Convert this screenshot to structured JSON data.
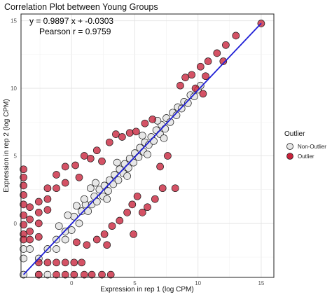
{
  "chart_data": {
    "type": "scatter",
    "title": "Correlation Plot between Young Groups",
    "xlabel": "Expression in rep 1 (log CPM)",
    "ylabel": "Expression in rep 2 (log CPM)",
    "xlim": [
      -4,
      16
    ],
    "ylim": [
      -4,
      15.5
    ],
    "xticks": [
      0,
      5,
      10,
      15
    ],
    "yticks": [
      0,
      5,
      10,
      15
    ],
    "grid": true,
    "annotation": {
      "equation": "y = 0.9897 x + -0.0303",
      "pearson": "Pearson r = 0.9759"
    },
    "fit_line": {
      "slope": 0.9897,
      "intercept": -0.0303,
      "x_range": [
        -3.8,
        15
      ],
      "color": "#1f1fd6"
    },
    "legend": {
      "title": "Outlier",
      "position": "right",
      "entries": [
        {
          "label": "Non-Outlier",
          "color": "#e6e6e6"
        },
        {
          "label": "Outlier",
          "color": "#c8213a"
        }
      ]
    },
    "series": [
      {
        "name": "Non-Outlier",
        "color": "#e6e6e6",
        "points": [
          [
            -3.8,
            -3.8
          ],
          [
            -3.8,
            -2.6
          ],
          [
            -3.8,
            -1.9
          ],
          [
            -2.6,
            -3.8
          ],
          [
            -1.9,
            -3.8
          ],
          [
            -3.3,
            -1.9
          ],
          [
            -2.6,
            -2.6
          ],
          [
            -1.9,
            -1.9
          ],
          [
            -1.2,
            -1.9
          ],
          [
            -1.2,
            -1.2
          ],
          [
            -0.5,
            -1.2
          ],
          [
            -0.5,
            -0.6
          ],
          [
            -1.0,
            -0.2
          ],
          [
            0.0,
            -0.5
          ],
          [
            0.2,
            0.5
          ],
          [
            0.6,
            0.0
          ],
          [
            0.8,
            0.9
          ],
          [
            1.1,
            1.4
          ],
          [
            1.3,
            0.9
          ],
          [
            1.0,
            1.8
          ],
          [
            1.6,
            1.4
          ],
          [
            1.8,
            2.0
          ],
          [
            2.0,
            1.6
          ],
          [
            2.2,
            2.5
          ],
          [
            2.5,
            2.0
          ],
          [
            2.6,
            2.8
          ],
          [
            2.9,
            2.4
          ],
          [
            3.0,
            3.2
          ],
          [
            3.3,
            2.9
          ],
          [
            3.4,
            3.6
          ],
          [
            3.7,
            3.2
          ],
          [
            3.8,
            4.0
          ],
          [
            4.1,
            3.7
          ],
          [
            4.2,
            4.4
          ],
          [
            4.5,
            4.1
          ],
          [
            4.6,
            4.8
          ],
          [
            4.9,
            4.5
          ],
          [
            5.0,
            5.2
          ],
          [
            5.3,
            4.9
          ],
          [
            5.4,
            5.6
          ],
          [
            5.7,
            5.3
          ],
          [
            5.8,
            6.0
          ],
          [
            6.1,
            5.8
          ],
          [
            6.3,
            6.4
          ],
          [
            6.5,
            6.1
          ],
          [
            6.7,
            6.9
          ],
          [
            7.0,
            6.6
          ],
          [
            7.1,
            7.3
          ],
          [
            7.4,
            7.0
          ],
          [
            7.5,
            7.8
          ],
          [
            7.8,
            7.5
          ],
          [
            8.0,
            8.2
          ],
          [
            8.3,
            8.0
          ],
          [
            8.4,
            8.6
          ],
          [
            8.7,
            8.5
          ],
          [
            8.9,
            9.0
          ],
          [
            9.2,
            8.9
          ],
          [
            9.4,
            9.5
          ],
          [
            9.7,
            9.4
          ],
          [
            10.0,
            9.9
          ],
          [
            10.2,
            10.2
          ],
          [
            1.5,
            2.6
          ],
          [
            2.8,
            1.8
          ],
          [
            3.6,
            4.5
          ],
          [
            4.4,
            3.5
          ],
          [
            5.6,
            6.5
          ],
          [
            6.0,
            5.1
          ],
          [
            6.8,
            7.6
          ],
          [
            7.3,
            6.3
          ],
          [
            0.4,
            1.3
          ],
          [
            -0.3,
            0.6
          ],
          [
            1.9,
            3.0
          ]
        ]
      },
      {
        "name": "Outlier",
        "color": "#c8213a",
        "points": [
          [
            -3.8,
            4.0
          ],
          [
            -3.8,
            3.4
          ],
          [
            -3.8,
            2.8
          ],
          [
            -3.8,
            2.1
          ],
          [
            -3.8,
            1.4
          ],
          [
            -3.8,
            0.6
          ],
          [
            -3.8,
            -0.1
          ],
          [
            -3.8,
            -0.8
          ],
          [
            -3.8,
            -1.2
          ],
          [
            -3.3,
            1.2
          ],
          [
            -3.3,
            0.3
          ],
          [
            -3.3,
            -0.6
          ],
          [
            -3.3,
            -1.2
          ],
          [
            -2.6,
            1.6
          ],
          [
            -2.6,
            0.8
          ],
          [
            -2.6,
            0.0
          ],
          [
            -2.6,
            -1.0
          ],
          [
            -1.9,
            2.6
          ],
          [
            -1.9,
            1.8
          ],
          [
            -1.9,
            1.0
          ],
          [
            -1.2,
            3.6
          ],
          [
            -1.2,
            2.6
          ],
          [
            -0.5,
            4.2
          ],
          [
            -0.5,
            3.0
          ],
          [
            0.3,
            4.3
          ],
          [
            0.6,
            3.4
          ],
          [
            1.0,
            5.0
          ],
          [
            1.5,
            4.8
          ],
          [
            2.0,
            5.4
          ],
          [
            2.4,
            4.6
          ],
          [
            3.0,
            6.0
          ],
          [
            3.5,
            6.6
          ],
          [
            4.0,
            6.4
          ],
          [
            4.6,
            6.7
          ],
          [
            5.1,
            6.8
          ],
          [
            5.8,
            7.4
          ],
          [
            6.4,
            7.7
          ],
          [
            -2.6,
            -2.9
          ],
          [
            -1.9,
            -2.9
          ],
          [
            -1.2,
            -2.9
          ],
          [
            -0.5,
            -2.9
          ],
          [
            0.2,
            -2.9
          ],
          [
            0.8,
            -2.9
          ],
          [
            -2.6,
            -3.8
          ],
          [
            -1.2,
            -3.8
          ],
          [
            -0.5,
            -3.8
          ],
          [
            0.2,
            -3.8
          ],
          [
            1.0,
            -3.8
          ],
          [
            1.6,
            -3.8
          ],
          [
            2.4,
            -3.8
          ],
          [
            3.1,
            -3.8
          ],
          [
            0.4,
            -1.4
          ],
          [
            1.2,
            -1.6
          ],
          [
            2.0,
            -1.2
          ],
          [
            2.6,
            -0.8
          ],
          [
            3.2,
            -0.2
          ],
          [
            3.8,
            0.2
          ],
          [
            4.4,
            0.8
          ],
          [
            4.8,
            1.4
          ],
          [
            5.2,
            2.0
          ],
          [
            4.9,
            -0.8
          ],
          [
            6.0,
            1.2
          ],
          [
            6.6,
            1.8
          ],
          [
            7.2,
            2.6
          ],
          [
            8.2,
            2.6
          ],
          [
            7.0,
            4.2
          ],
          [
            7.6,
            5.0
          ],
          [
            5.6,
            0.8
          ],
          [
            2.8,
            -1.6
          ],
          [
            8.6,
            10.2
          ],
          [
            9.0,
            10.8
          ],
          [
            9.5,
            11.0
          ],
          [
            10.2,
            11.6
          ],
          [
            10.8,
            12.0
          ],
          [
            11.5,
            12.6
          ],
          [
            12.2,
            13.2
          ],
          [
            13.0,
            13.9
          ],
          [
            12.0,
            12.0
          ],
          [
            10.6,
            10.9
          ],
          [
            9.8,
            10.0
          ],
          [
            10.4,
            9.6
          ],
          [
            15.0,
            14.8
          ]
        ]
      }
    ]
  }
}
